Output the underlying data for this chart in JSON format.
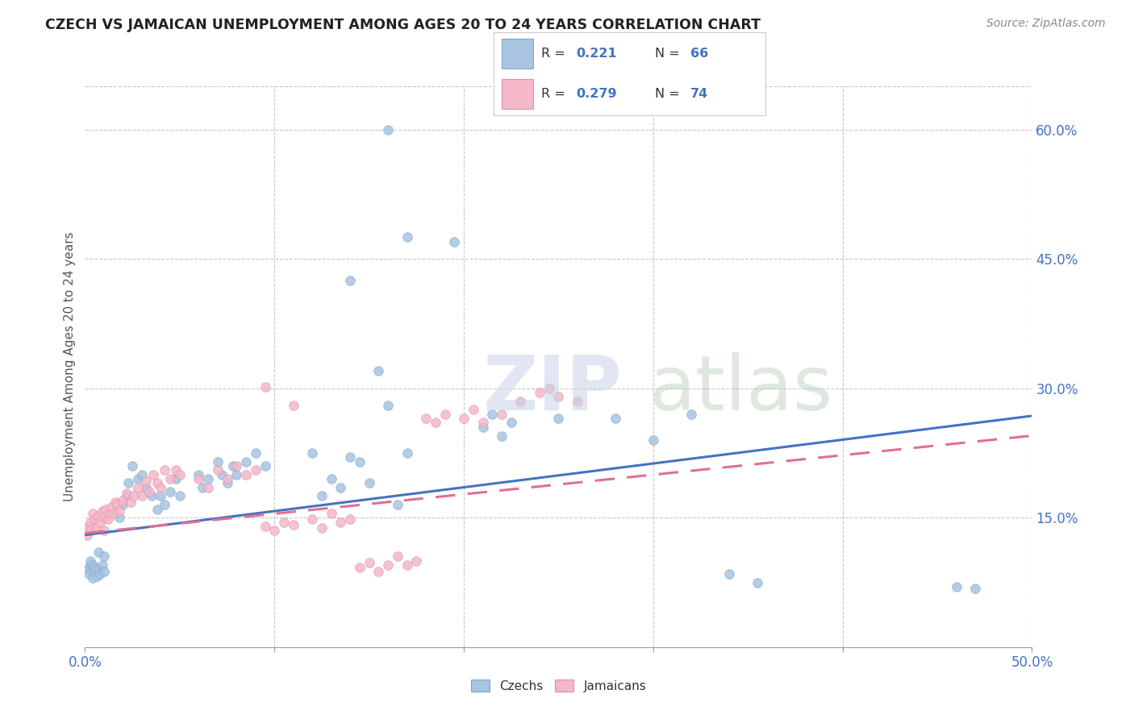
{
  "title": "CZECH VS JAMAICAN UNEMPLOYMENT AMONG AGES 20 TO 24 YEARS CORRELATION CHART",
  "source": "Source: ZipAtlas.com",
  "ylabel": "Unemployment Among Ages 20 to 24 years",
  "xlim": [
    0.0,
    0.5
  ],
  "ylim": [
    0.0,
    0.65
  ],
  "xtick_vals": [
    0.0,
    0.1,
    0.2,
    0.3,
    0.4,
    0.5
  ],
  "xticklabels": [
    "0.0%",
    "",
    "",
    "",
    "",
    "50.0%"
  ],
  "ytick_right_vals": [
    0.15,
    0.3,
    0.45,
    0.6
  ],
  "yticklabels_right": [
    "15.0%",
    "30.0%",
    "45.0%",
    "60.0%"
  ],
  "czech_color": "#a8c4e0",
  "czech_edge_color": "#7aaad0",
  "jamaican_color": "#f4b8c8",
  "jamaican_edge_color": "#e090a8",
  "czech_line_color": "#4472c4",
  "jamaican_line_color": "#e07090",
  "tick_color": "#4472c4",
  "label_color": "#555555",
  "title_color": "#222222",
  "source_color": "#888888",
  "grid_color": "#c8c8c8",
  "background_color": "#ffffff",
  "legend_border_color": "#cccccc",
  "legend_R_N_color": "#4472c4",
  "legend_label_color": "#333333",
  "watermark_zip_color": "#c8d4e8",
  "watermark_atlas_color": "#b8ccb8",
  "czech_R": 0.221,
  "czech_N": 66,
  "jamaican_R": 0.279,
  "jamaican_N": 74,
  "czech_trend_y0": 0.13,
  "czech_trend_y1": 0.268,
  "jamaican_trend_y0": 0.132,
  "jamaican_trend_y1": 0.245,
  "scatter_size": 70,
  "scatter_alpha": 0.85,
  "scatter_lw": 0.5
}
